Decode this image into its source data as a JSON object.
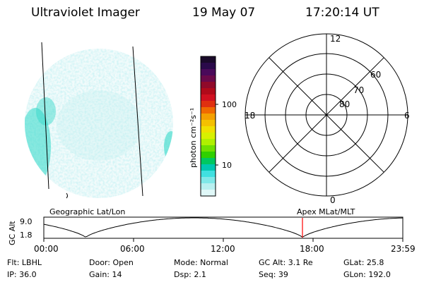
{
  "header": {
    "instrument": "Ultraviolet Imager",
    "date": "19 May 07",
    "time": "17:20:14 UT"
  },
  "colorbar": {
    "unit_label": "photon cm⁻²s⁻¹",
    "tick_labels": [
      "100",
      "10"
    ],
    "colors": [
      "#1a0a2a",
      "#2a0a4a",
      "#4a0a5a",
      "#6a0a4a",
      "#900a2a",
      "#b00a1a",
      "#d01020",
      "#e03010",
      "#f06a00",
      "#f4a000",
      "#f4c000",
      "#f0e000",
      "#d8f000",
      "#b0f000",
      "#70e000",
      "#30d000",
      "#00c860",
      "#00c8b0",
      "#40e0e0",
      "#80e8e8",
      "#b8f0f0",
      "#e0f8f8"
    ]
  },
  "polar_plot": {
    "labels_mlt": [
      "12",
      "18",
      "6",
      "0"
    ],
    "labels_lat": [
      "60",
      "70",
      "80"
    ]
  },
  "timeline": {
    "label_left": "Geographic Lat/Lon",
    "label_right": "Apex MLat/MLT",
    "y_axis_label": "GC Alt",
    "y_ticks": [
      "9.0",
      "1.8"
    ],
    "x_ticks": [
      "00:00",
      "06:00",
      "12:00",
      "18:00",
      "23:59"
    ],
    "current_time_marker_color": "#ff0000"
  },
  "info": {
    "flt": "Flt: LBHL",
    "ip": "IP: 36.0",
    "door": "Door: Open",
    "gain": "Gain: 14",
    "mode": "Mode: Normal",
    "dsp": "Dsp:     2.1",
    "gc_alt": "GC Alt: 3.1 Re",
    "seq": "Seq: 39",
    "glat": "GLat:  25.8",
    "glon": "GLon: 192.0"
  }
}
